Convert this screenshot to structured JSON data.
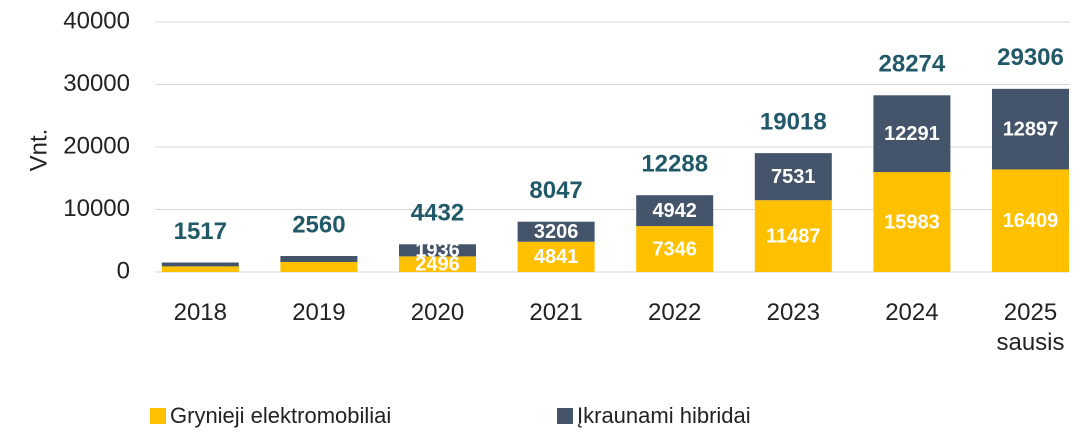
{
  "chart_data": {
    "type": "stacked_bar",
    "ylabel": "Vnt.",
    "categories": [
      "2018",
      "2019",
      "2020",
      "2021",
      "2022",
      "2023",
      "2024",
      "2025\nsausis"
    ],
    "series": [
      {
        "name": "Grynieji elektromobiliai",
        "color": "#FFC000",
        "values": [
          900,
          1600,
          2496,
          4841,
          7346,
          11487,
          15983,
          16409
        ],
        "value_labels": [
          null,
          null,
          "2496",
          "4841",
          "7346",
          "11487",
          "15983",
          "16409"
        ]
      },
      {
        "name": "Įkraunami hibridai",
        "color": "#44546A",
        "values": [
          617,
          960,
          1936,
          3206,
          4942,
          7531,
          12291,
          12897
        ],
        "value_labels": [
          null,
          null,
          "1936",
          "3206",
          "4942",
          "7531",
          "12291",
          "12897"
        ]
      }
    ],
    "totals": [
      1517,
      2560,
      4432,
      8047,
      12288,
      19018,
      28274,
      29306
    ],
    "ylim": [
      0,
      40000
    ],
    "yticks": [
      0,
      10000,
      20000,
      30000,
      40000
    ],
    "grid": true
  }
}
